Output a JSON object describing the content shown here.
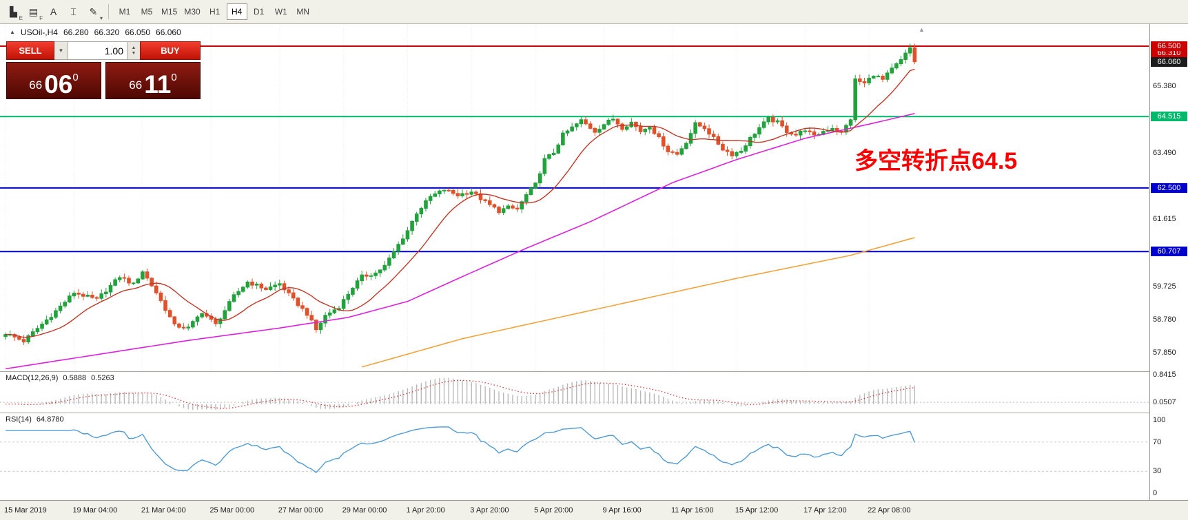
{
  "toolbar": {
    "icons": [
      {
        "name": "charts-icon",
        "glyph": "▙",
        "sub": "E"
      },
      {
        "name": "market-depth-icon",
        "glyph": "▤",
        "sub": "F"
      },
      {
        "name": "text-label-icon",
        "glyph": "A",
        "sub": ""
      },
      {
        "name": "text-box-icon",
        "glyph": "⌶",
        "sub": ""
      },
      {
        "name": "draw-tools-icon",
        "glyph": "✎",
        "sub": "▾"
      }
    ],
    "timeframes": [
      "M1",
      "M5",
      "M15",
      "M30",
      "H1",
      "H4",
      "D1",
      "W1",
      "MN"
    ],
    "active_timeframe": "H4"
  },
  "header": {
    "symbol": "USOil-,H4",
    "open": "66.280",
    "high": "66.320",
    "low": "66.050",
    "close": "66.060"
  },
  "trade_panel": {
    "sell_label": "SELL",
    "buy_label": "BUY",
    "volume": "1.00",
    "bid": {
      "prefix": "66",
      "big": "06",
      "sup": "0"
    },
    "ask": {
      "prefix": "66",
      "big": "11",
      "sup": "0"
    }
  },
  "annotation": {
    "text": "多空转折点64.5",
    "color": "#ff0000"
  },
  "chart": {
    "price_axis": {
      "levels": [
        {
          "price": 66.5,
          "label": "66.500",
          "color": "#cc0000"
        },
        {
          "price": 64.515,
          "label": "64.515",
          "color": "#00b96b"
        },
        {
          "price": 62.5,
          "label": "62.500",
          "color": "#0000cc"
        },
        {
          "price": 60.707,
          "label": "60.707",
          "color": "#0000cc"
        }
      ],
      "extra_labels": [
        {
          "price": 66.31,
          "label": "66.310",
          "bg": "#cc0000"
        },
        {
          "price": 66.06,
          "label": "66.060",
          "bg": "#1c1c1c"
        }
      ],
      "plain_labels": [
        {
          "price": 65.38,
          "label": "65.380"
        },
        {
          "price": 63.49,
          "label": "63.490"
        },
        {
          "price": 61.615,
          "label": "61.615"
        },
        {
          "price": 59.725,
          "label": "59.725"
        },
        {
          "price": 58.78,
          "label": "58.780"
        },
        {
          "price": 57.85,
          "label": "57.850"
        }
      ]
    },
    "candle_anchors": [
      [
        0,
        58.4
      ],
      [
        4,
        58.18
      ],
      [
        10,
        58.9
      ],
      [
        15,
        59.55
      ],
      [
        20,
        59.35
      ],
      [
        25,
        60.0
      ],
      [
        28,
        59.78
      ],
      [
        30,
        60.15
      ],
      [
        33,
        59.55
      ],
      [
        37,
        58.62
      ],
      [
        40,
        58.55
      ],
      [
        43,
        59.0
      ],
      [
        46,
        58.65
      ],
      [
        50,
        59.45
      ],
      [
        53,
        59.85
      ],
      [
        57,
        59.65
      ],
      [
        60,
        59.8
      ],
      [
        63,
        59.35
      ],
      [
        66,
        58.95
      ],
      [
        68,
        58.5
      ],
      [
        70,
        58.9
      ],
      [
        73,
        59.15
      ],
      [
        76,
        59.7
      ],
      [
        78,
        60.0
      ],
      [
        81,
        60.1
      ],
      [
        83,
        60.3
      ],
      [
        86,
        60.9
      ],
      [
        88,
        61.3
      ],
      [
        90,
        61.8
      ],
      [
        93,
        62.25
      ],
      [
        96,
        62.45
      ],
      [
        99,
        62.3
      ],
      [
        102,
        62.4
      ],
      [
        105,
        62.1
      ],
      [
        108,
        61.85
      ],
      [
        110,
        61.95
      ],
      [
        112,
        61.9
      ],
      [
        114,
        62.3
      ],
      [
        116,
        62.6
      ],
      [
        118,
        63.3
      ],
      [
        120,
        63.5
      ],
      [
        122,
        64.0
      ],
      [
        124,
        64.2
      ],
      [
        126,
        64.4
      ],
      [
        129,
        64.1
      ],
      [
        131,
        64.3
      ],
      [
        133,
        64.45
      ],
      [
        135,
        64.2
      ],
      [
        137,
        64.35
      ],
      [
        139,
        64.1
      ],
      [
        141,
        64.25
      ],
      [
        143,
        63.9
      ],
      [
        145,
        63.55
      ],
      [
        147,
        63.45
      ],
      [
        149,
        63.8
      ],
      [
        151,
        64.3
      ],
      [
        153,
        64.2
      ],
      [
        155,
        63.9
      ],
      [
        157,
        63.6
      ],
      [
        159,
        63.45
      ],
      [
        161,
        63.55
      ],
      [
        163,
        63.9
      ],
      [
        165,
        64.2
      ],
      [
        167,
        64.45
      ],
      [
        169,
        64.35
      ],
      [
        171,
        64.1
      ],
      [
        173,
        64.0
      ],
      [
        175,
        64.15
      ],
      [
        177,
        63.95
      ],
      [
        179,
        64.1
      ],
      [
        181,
        64.2
      ],
      [
        183,
        64.05
      ],
      [
        185,
        64.45
      ],
      [
        186,
        65.55
      ],
      [
        188,
        65.45
      ],
      [
        190,
        65.7
      ],
      [
        192,
        65.55
      ],
      [
        194,
        65.85
      ],
      [
        196,
        66.1
      ],
      [
        198,
        66.45
      ],
      [
        199,
        66.06
      ]
    ],
    "ma": {
      "fast_period": 13,
      "mid_anchors": [
        [
          0,
          57.4
        ],
        [
          20,
          57.8
        ],
        [
          40,
          58.2
        ],
        [
          60,
          58.55
        ],
        [
          75,
          58.85
        ],
        [
          88,
          59.3
        ],
        [
          100,
          60.0
        ],
        [
          114,
          60.8
        ],
        [
          128,
          61.55
        ],
        [
          146,
          62.65
        ],
        [
          160,
          63.3
        ],
        [
          175,
          63.9
        ],
        [
          189,
          64.3
        ],
        [
          199,
          64.6
        ]
      ],
      "slow_anchors": [
        [
          78,
          57.45
        ],
        [
          100,
          58.25
        ],
        [
          130,
          59.1
        ],
        [
          160,
          59.95
        ],
        [
          185,
          60.6
        ],
        [
          199,
          61.1
        ]
      ]
    },
    "colors": {
      "up": "#22a23c",
      "down": "#e0512b",
      "ma_fast": "#c23726",
      "ma_mid": "#dd22dd",
      "ma_slow": "#f2a33c",
      "level_red": "#cc0000",
      "level_green": "#00b96b",
      "level_blue": "#0000cc",
      "macd_hist": "#b9b9b9",
      "macd_signal": "#d23b3b",
      "rsi_line": "#4f9bd5"
    }
  },
  "macd": {
    "name": "MACD(12,26,9)",
    "value_main": "0.5888",
    "value_signal": "0.5263",
    "axis_labels": [
      {
        "value": 0.8415,
        "label": "0.8415"
      },
      {
        "value": 0.0507,
        "label": "0.0507"
      }
    ]
  },
  "rsi": {
    "name": "RSI(14)",
    "value": "64.8780",
    "axis_labels": [
      {
        "value": 100,
        "label": "100"
      },
      {
        "value": 70,
        "label": "70"
      },
      {
        "value": 30,
        "label": "30"
      },
      {
        "value": 0,
        "label": "0"
      }
    ],
    "levels": [
      70,
      30
    ]
  },
  "time_axis": [
    {
      "label": "15 Mar 2019",
      "i": 0
    },
    {
      "label": "19 Mar 04:00",
      "i": 15
    },
    {
      "label": "21 Mar 04:00",
      "i": 30
    },
    {
      "label": "25 Mar 00:00",
      "i": 45
    },
    {
      "label": "27 Mar 00:00",
      "i": 60
    },
    {
      "label": "29 Mar 00:00",
      "i": 74
    },
    {
      "label": "1 Apr 20:00",
      "i": 88
    },
    {
      "label": "3 Apr 20:00",
      "i": 102
    },
    {
      "label": "5 Apr 20:00",
      "i": 116
    },
    {
      "label": "9 Apr 16:00",
      "i": 131
    },
    {
      "label": "11 Apr 16:00",
      "i": 146
    },
    {
      "label": "15 Apr 12:00",
      "i": 160
    },
    {
      "label": "17 Apr 12:00",
      "i": 175
    },
    {
      "label": "22 Apr 08:00",
      "i": 189
    }
  ]
}
